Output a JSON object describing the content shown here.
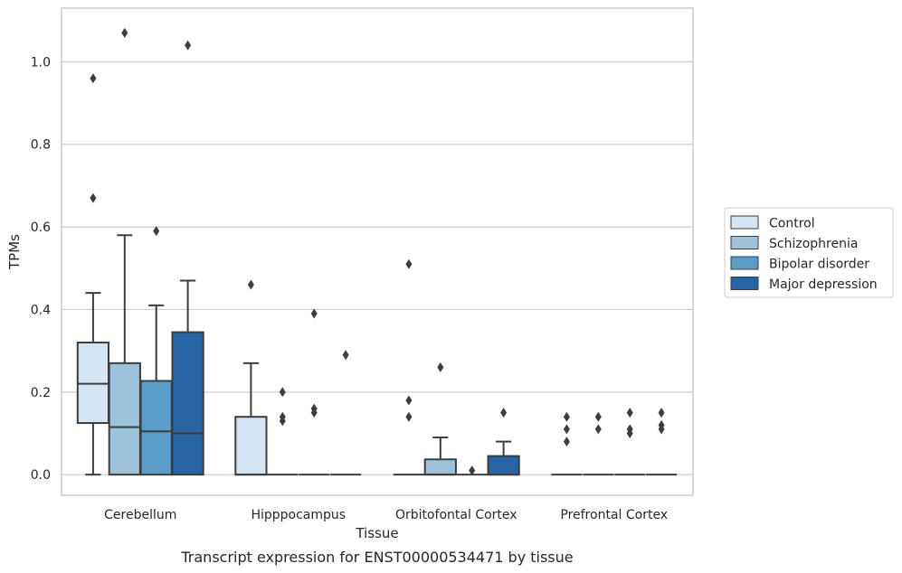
{
  "chart_data": {
    "type": "box",
    "title": "",
    "caption": "Transcript expression for ENST00000534471 by tissue",
    "xlabel": "Tissue",
    "ylabel": "TPMs",
    "ylim": [
      -0.05,
      1.13
    ],
    "yticks": [
      "0.0",
      "0.2",
      "0.4",
      "0.6",
      "0.8",
      "1.0"
    ],
    "grid": "horizontal",
    "legend_position": "right",
    "categories": [
      "Cerebellum",
      "Hipppocampus",
      "Orbitofontal Cortex",
      "Prefrontal Cortex"
    ],
    "series": [
      {
        "name": "Control",
        "color": "#d4e4f2",
        "boxes": [
          {
            "whisker_low": 0.0,
            "q1": 0.125,
            "median": 0.22,
            "q3": 0.32,
            "whisker_high": 0.44,
            "outliers": [
              0.67,
              0.96
            ]
          },
          {
            "whisker_low": 0.0,
            "q1": 0.0,
            "median": 0.0,
            "q3": 0.14,
            "whisker_high": 0.27,
            "outliers": [
              0.46
            ]
          },
          {
            "whisker_low": 0.0,
            "q1": 0.0,
            "median": 0.0,
            "q3": 0.0,
            "whisker_high": 0.0,
            "outliers": [
              0.14,
              0.18,
              0.51
            ]
          },
          {
            "whisker_low": 0.0,
            "q1": 0.0,
            "median": 0.0,
            "q3": 0.0,
            "whisker_high": 0.0,
            "outliers": [
              0.08,
              0.11,
              0.14
            ]
          }
        ]
      },
      {
        "name": "Schizophrenia",
        "color": "#9cc3da",
        "boxes": [
          {
            "whisker_low": 0.0,
            "q1": 0.0,
            "median": 0.115,
            "q3": 0.27,
            "whisker_high": 0.58,
            "outliers": [
              1.07
            ]
          },
          {
            "whisker_low": 0.0,
            "q1": 0.0,
            "median": 0.0,
            "q3": 0.0,
            "whisker_high": 0.0,
            "outliers": [
              0.13,
              0.14,
              0.2
            ]
          },
          {
            "whisker_low": 0.0,
            "q1": 0.0,
            "median": 0.0,
            "q3": 0.037,
            "whisker_high": 0.09,
            "outliers": [
              0.26
            ]
          },
          {
            "whisker_low": 0.0,
            "q1": 0.0,
            "median": 0.0,
            "q3": 0.0,
            "whisker_high": 0.0,
            "outliers": [
              0.11,
              0.14
            ]
          }
        ]
      },
      {
        "name": "Bipolar disorder",
        "color": "#5a9dc8",
        "boxes": [
          {
            "whisker_low": 0.0,
            "q1": 0.0,
            "median": 0.105,
            "q3": 0.227,
            "whisker_high": 0.41,
            "outliers": [
              0.59
            ]
          },
          {
            "whisker_low": 0.0,
            "q1": 0.0,
            "median": 0.0,
            "q3": 0.0,
            "whisker_high": 0.0,
            "outliers": [
              0.15,
              0.16,
              0.39
            ]
          },
          {
            "whisker_low": 0.0,
            "q1": 0.0,
            "median": 0.0,
            "q3": 0.0,
            "whisker_high": 0.0,
            "outliers": [
              0.01
            ]
          },
          {
            "whisker_low": 0.0,
            "q1": 0.0,
            "median": 0.0,
            "q3": 0.0,
            "whisker_high": 0.0,
            "outliers": [
              0.1,
              0.11,
              0.15
            ]
          }
        ]
      },
      {
        "name": "Major depression",
        "color": "#2664a5",
        "boxes": [
          {
            "whisker_low": 0.0,
            "q1": 0.0,
            "median": 0.1,
            "q3": 0.345,
            "whisker_high": 0.47,
            "outliers": [
              1.04
            ]
          },
          {
            "whisker_low": 0.0,
            "q1": 0.0,
            "median": 0.0,
            "q3": 0.0,
            "whisker_high": 0.0,
            "outliers": [
              0.29
            ]
          },
          {
            "whisker_low": 0.0,
            "q1": 0.0,
            "median": 0.0,
            "q3": 0.045,
            "whisker_high": 0.08,
            "outliers": [
              0.15
            ]
          },
          {
            "whisker_low": 0.0,
            "q1": 0.0,
            "median": 0.0,
            "q3": 0.0,
            "whisker_high": 0.0,
            "outliers": [
              0.11,
              0.12,
              0.15
            ]
          }
        ]
      }
    ]
  }
}
